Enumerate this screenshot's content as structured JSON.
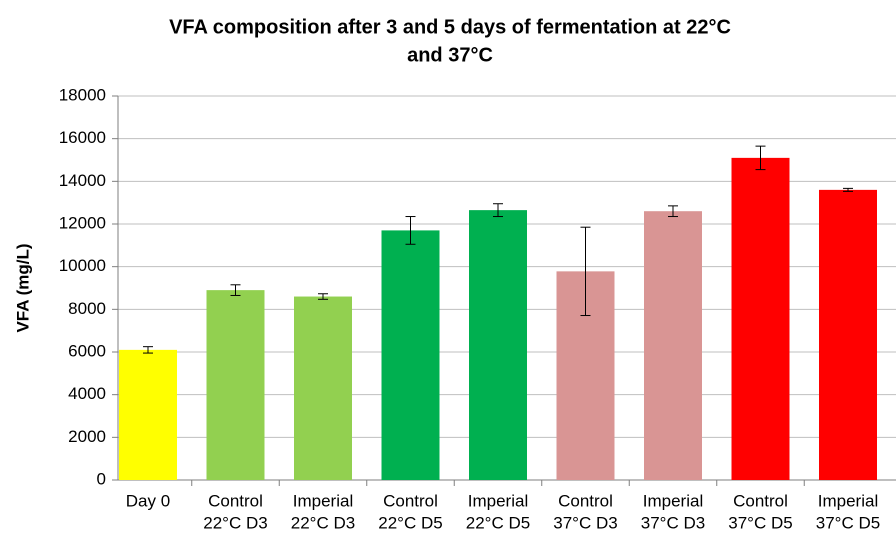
{
  "chart_data": {
    "type": "bar",
    "title": [
      "VFA composition after 3 and 5 days of fermentation at 22°C",
      "and 37°C"
    ],
    "y_label": "VFA (mg/L)",
    "categories": [
      [
        "Day 0"
      ],
      [
        "Control",
        "22°C D3"
      ],
      [
        "Imperial",
        "22°C D3"
      ],
      [
        "Control",
        "22°C D5"
      ],
      [
        "Imperial",
        "22°C D5"
      ],
      [
        "Control",
        "37°C D3"
      ],
      [
        "Imperial",
        "37°C D3"
      ],
      [
        "Control",
        "37°C D5"
      ],
      [
        "Imperial",
        "37°C D5"
      ]
    ],
    "values": [
      6100,
      8900,
      8600,
      11700,
      12650,
      9780,
      12600,
      15100,
      13600
    ],
    "errors": [
      150,
      250,
      130,
      650,
      300,
      2070,
      250,
      550,
      70
    ],
    "colors": [
      "#ffff00",
      "#92d050",
      "#92d050",
      "#00b050",
      "#00b050",
      "#d99594",
      "#d99594",
      "#ff0000",
      "#ff0000"
    ],
    "ylim": [
      0,
      18000
    ],
    "yticks": [
      0,
      2000,
      4000,
      6000,
      8000,
      10000,
      12000,
      14000,
      16000,
      18000
    ],
    "grid": true
  }
}
